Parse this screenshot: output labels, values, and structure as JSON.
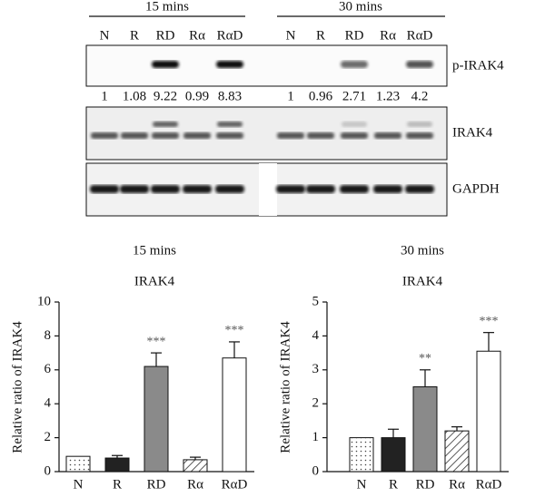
{
  "blot": {
    "groups": [
      "15 mins",
      "30 mins"
    ],
    "lanes": [
      [
        "N",
        "R",
        "RD",
        "Rα",
        "RαD"
      ],
      [
        "N",
        "R",
        "RD",
        "Rα",
        "RαD"
      ]
    ],
    "rows": [
      "p-IRAK4",
      "IRAK4",
      "GAPDH"
    ],
    "ratios": [
      [
        1,
        1.08,
        9.22,
        0.99,
        8.83
      ],
      [
        1,
        0.96,
        2.71,
        1.23,
        4.2
      ]
    ]
  },
  "chart_data": [
    {
      "type": "bar",
      "title": "15 mins",
      "subtitle": "IRAK4",
      "ylabel": "Relative ratio of IRAK4",
      "categories": [
        "N",
        "R",
        "RD",
        "Rα",
        "RαD"
      ],
      "values": [
        0.9,
        0.8,
        6.2,
        0.7,
        6.7
      ],
      "errors": [
        0,
        0.15,
        0.8,
        0.15,
        0.95
      ],
      "annotations": [
        null,
        null,
        "***",
        null,
        "***"
      ],
      "colors": [
        "#ffffff",
        "#222222",
        "#8a8a8a",
        "#ffffff",
        "#ffffff"
      ],
      "patterns": [
        "dots",
        "solid",
        "solid",
        "hatch",
        "solid"
      ],
      "ylim": [
        0,
        10
      ],
      "yticks": [
        0,
        2,
        4,
        6,
        8,
        10
      ]
    },
    {
      "type": "bar",
      "title": "30 mins",
      "subtitle": "IRAK4",
      "ylabel": "Relative ratio of IRAK4",
      "categories": [
        "N",
        "R",
        "RD",
        "Rα",
        "RαD"
      ],
      "values": [
        1.0,
        1.0,
        2.5,
        1.2,
        3.55
      ],
      "errors": [
        0,
        0.25,
        0.5,
        0.12,
        0.55
      ],
      "annotations": [
        null,
        null,
        "**",
        null,
        "***"
      ],
      "colors": [
        "#ffffff",
        "#222222",
        "#8a8a8a",
        "#ffffff",
        "#ffffff"
      ],
      "patterns": [
        "dots",
        "solid",
        "solid",
        "hatch",
        "solid"
      ],
      "ylim": [
        0,
        5
      ],
      "yticks": [
        0,
        1,
        2,
        3,
        4,
        5
      ]
    }
  ]
}
